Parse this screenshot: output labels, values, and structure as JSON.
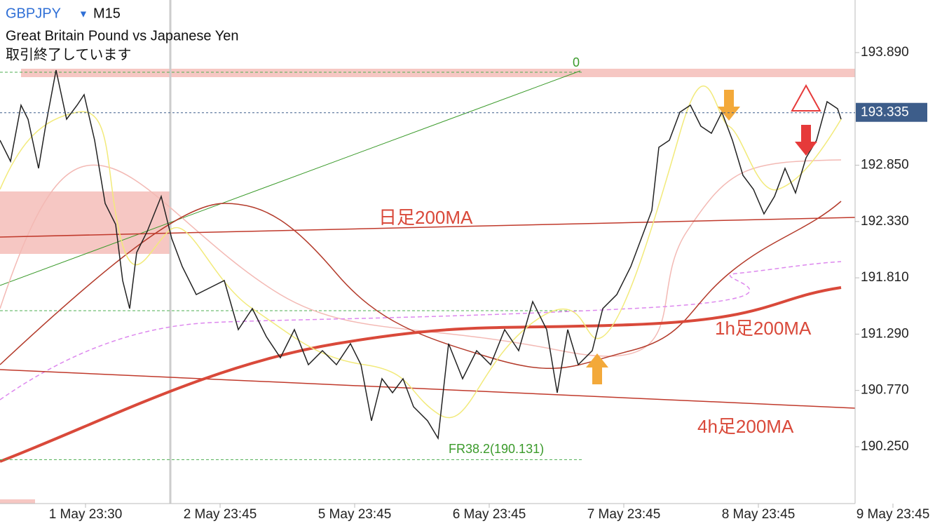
{
  "header": {
    "symbol": "GBPJPY",
    "timeframe": "M15",
    "description": "Great Britain Pound vs Japanese Yen",
    "status": "取引終了しています"
  },
  "price_axis": {
    "ylim": [
      189.725,
      194.376
    ],
    "ticks": [
      {
        "value": 193.89,
        "label": "193.890"
      },
      {
        "value": 192.85,
        "label": "192.850"
      },
      {
        "value": 192.33,
        "label": "192.330"
      },
      {
        "value": 191.81,
        "label": "191.810"
      },
      {
        "value": 191.29,
        "label": "191.290"
      },
      {
        "value": 190.77,
        "label": "190.770"
      },
      {
        "value": 190.25,
        "label": "190.250"
      }
    ]
  },
  "current_price": {
    "value": 193.335,
    "label": "193.335"
  },
  "time_axis": {
    "labels": [
      "1 May 23:30",
      "2 May 23:45",
      "5 May 23:45",
      "6 May 23:45",
      "7 May 23:45",
      "8 May 23:45",
      "9 May 23:45"
    ]
  },
  "annotations": {
    "fib_zero": "0",
    "fib_level": {
      "value": 190.131,
      "label": "FR38.2(190.131)"
    },
    "daily_ma": "日足200MA",
    "h1_ma": "1h足200MA",
    "h4_ma": "4h足200MA"
  }
}
